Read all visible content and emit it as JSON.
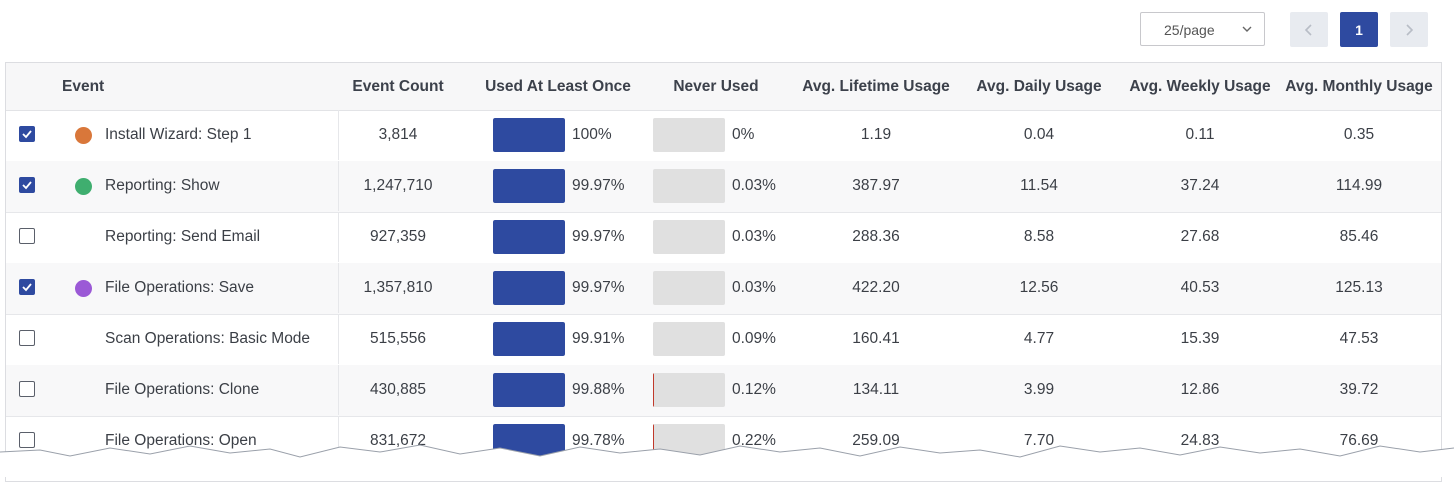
{
  "pagination": {
    "page_size": "25/page",
    "current_page": "1"
  },
  "table": {
    "headers": {
      "event": "Event",
      "event_count": "Event Count",
      "used_once": "Used At Least Once",
      "never_used": "Never Used",
      "lifetime": "Avg. Lifetime Usage",
      "daily": "Avg. Daily Usage",
      "weekly": "Avg. Weekly Usage",
      "monthly": "Avg. Monthly Usage"
    },
    "rows": [
      {
        "checked": true,
        "dot_color": "#d9773a",
        "event": "Install Wizard: Step 1",
        "count": "3,814",
        "used_pct": "100%",
        "used_frac": 1.0,
        "never_pct": "0%",
        "never_frac": 0.0,
        "lifetime": "1.19",
        "daily": "0.04",
        "weekly": "0.11",
        "monthly": "0.35"
      },
      {
        "checked": true,
        "dot_color": "#3fae6f",
        "event": "Reporting: Show",
        "count": "1,247,710",
        "used_pct": "99.97%",
        "used_frac": 0.9997,
        "never_pct": "0.03%",
        "never_frac": 0.0003,
        "lifetime": "387.97",
        "daily": "11.54",
        "weekly": "37.24",
        "monthly": "114.99"
      },
      {
        "checked": false,
        "dot_color": "",
        "event": "Reporting: Send Email",
        "count": "927,359",
        "used_pct": "99.97%",
        "used_frac": 0.9997,
        "never_pct": "0.03%",
        "never_frac": 0.0003,
        "lifetime": "288.36",
        "daily": "8.58",
        "weekly": "27.68",
        "monthly": "85.46"
      },
      {
        "checked": true,
        "dot_color": "#9b59d6",
        "event": "File Operations: Save",
        "count": "1,357,810",
        "used_pct": "99.97%",
        "used_frac": 0.9997,
        "never_pct": "0.03%",
        "never_frac": 0.0003,
        "lifetime": "422.20",
        "daily": "12.56",
        "weekly": "40.53",
        "monthly": "125.13"
      },
      {
        "checked": false,
        "dot_color": "",
        "event": "Scan Operations: Basic Mode",
        "count": "515,556",
        "used_pct": "99.91%",
        "used_frac": 0.9991,
        "never_pct": "0.09%",
        "never_frac": 0.0009,
        "lifetime": "160.41",
        "daily": "4.77",
        "weekly": "15.39",
        "monthly": "47.53"
      },
      {
        "checked": false,
        "dot_color": "",
        "event": "File Operations: Clone",
        "count": "430,885",
        "used_pct": "99.88%",
        "used_frac": 0.9988,
        "never_pct": "0.12%",
        "never_frac": 0.0012,
        "lifetime": "134.11",
        "daily": "3.99",
        "weekly": "12.86",
        "monthly": "39.72"
      },
      {
        "checked": false,
        "dot_color": "",
        "event": "File Operations: Open",
        "count": "831,672",
        "used_pct": "99.78%",
        "used_frac": 0.9978,
        "never_pct": "0.22%",
        "never_frac": 0.0022,
        "lifetime": "259.09",
        "daily": "7.70",
        "weekly": "24.83",
        "monthly": "76.69"
      }
    ]
  },
  "colors": {
    "accent": "#2e4aa0",
    "never_used_marker": "#c0392b",
    "track": "#e0e0e0"
  },
  "icons": {
    "page_size_dropdown": "chevron-down-icon",
    "prev_page": "chevron-left-icon",
    "next_page": "chevron-right-icon",
    "checkbox_checked": "check-icon"
  }
}
